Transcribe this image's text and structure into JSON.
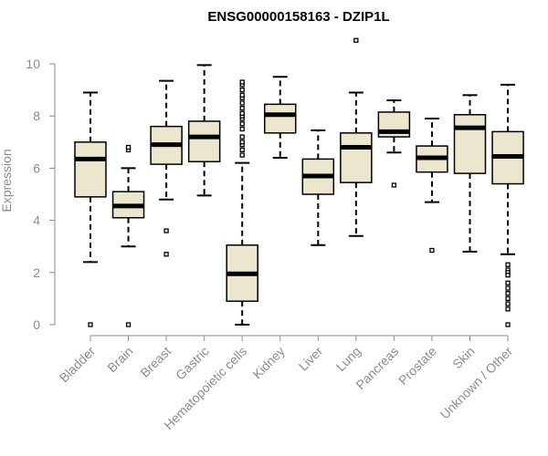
{
  "chart_data": {
    "type": "boxplot",
    "title": "ENSG00000158163 - DZIP1L",
    "xlabel": "",
    "ylabel": "Expression",
    "ylim": [
      0,
      10
    ],
    "yticks": [
      0,
      2,
      4,
      6,
      8,
      10
    ],
    "grid": false,
    "legend": "none",
    "colors": {
      "box_fill": "#ede6cf",
      "stroke": "#000000",
      "axis": "#8c8c8c",
      "title": "#000000"
    },
    "categories": [
      "Bladder",
      "Brain",
      "Breast",
      "Gastric",
      "Hematopoietic cells",
      "Kidney",
      "Liver",
      "Lung",
      "Pancreas",
      "Prostate",
      "Skin",
      "Unknown / Other"
    ],
    "boxes": [
      {
        "category": "Bladder",
        "whisker_low": 2.4,
        "q1": 4.9,
        "median": 6.35,
        "q3": 7.0,
        "whisker_high": 8.9,
        "outliers": [
          0.0
        ]
      },
      {
        "category": "Brain",
        "whisker_low": 3.0,
        "q1": 4.1,
        "median": 4.55,
        "q3": 5.1,
        "whisker_high": 6.0,
        "outliers": [
          6.7,
          6.8,
          0.0
        ]
      },
      {
        "category": "Breast",
        "whisker_low": 4.8,
        "q1": 6.15,
        "median": 6.9,
        "q3": 7.6,
        "whisker_high": 9.35,
        "outliers": [
          3.6,
          2.7
        ]
      },
      {
        "category": "Gastric",
        "whisker_low": 4.95,
        "q1": 6.25,
        "median": 7.2,
        "q3": 7.8,
        "whisker_high": 9.95,
        "outliers": []
      },
      {
        "category": "Hematopoietic cells",
        "whisker_low": 0.0,
        "q1": 0.9,
        "median": 1.95,
        "q3": 3.05,
        "whisker_high": 6.2,
        "outliers": [
          6.5,
          6.7,
          6.9,
          7.0,
          7.2,
          7.5,
          7.7,
          7.9,
          8.0,
          8.1,
          8.3,
          8.5,
          8.7,
          8.8,
          9.0,
          9.2,
          9.3
        ]
      },
      {
        "category": "Kidney",
        "whisker_low": 6.4,
        "q1": 7.35,
        "median": 8.05,
        "q3": 8.45,
        "whisker_high": 9.5,
        "outliers": []
      },
      {
        "category": "Liver",
        "whisker_low": 3.05,
        "q1": 5.0,
        "median": 5.7,
        "q3": 6.35,
        "whisker_high": 7.45,
        "outliers": []
      },
      {
        "category": "Lung",
        "whisker_low": 3.4,
        "q1": 5.45,
        "median": 6.8,
        "q3": 7.35,
        "whisker_high": 8.9,
        "outliers": [
          10.9
        ]
      },
      {
        "category": "Pancreas",
        "whisker_low": 6.6,
        "q1": 7.2,
        "median": 7.4,
        "q3": 8.15,
        "whisker_high": 8.6,
        "outliers": [
          5.35
        ]
      },
      {
        "category": "Prostate",
        "whisker_low": 4.7,
        "q1": 5.85,
        "median": 6.4,
        "q3": 6.85,
        "whisker_high": 7.9,
        "outliers": [
          2.85
        ]
      },
      {
        "category": "Skin",
        "whisker_low": 2.8,
        "q1": 5.8,
        "median": 7.55,
        "q3": 8.05,
        "whisker_high": 8.8,
        "outliers": []
      },
      {
        "category": "Unknown / Other",
        "whisker_low": 2.7,
        "q1": 5.4,
        "median": 6.45,
        "q3": 7.4,
        "whisker_high": 9.2,
        "outliers": [
          2.3,
          2.1,
          2.0,
          1.9,
          1.6,
          1.4,
          1.2,
          1.0,
          0.8,
          0.6,
          0.0
        ]
      }
    ]
  }
}
